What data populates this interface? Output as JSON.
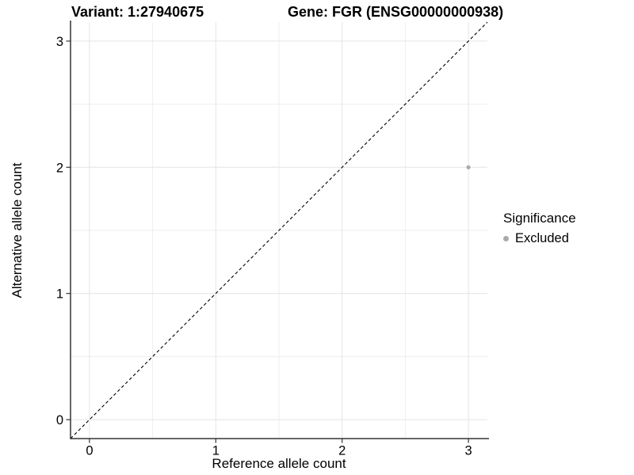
{
  "figure": {
    "title_variant": "Variant: 1:27940675",
    "title_gene": "Gene: FGR (ENSG00000000938)"
  },
  "chart_data": {
    "type": "scatter",
    "title": "Variant: 1:27940675    Gene: FGR (ENSG00000000938)",
    "xlabel": "Reference allele count",
    "ylabel": "Alternative allele count",
    "xlim": [
      -0.15,
      3.15
    ],
    "ylim": [
      -0.15,
      3.15
    ],
    "x_ticks": [
      0,
      1,
      2,
      3
    ],
    "y_ticks": [
      0,
      1,
      2,
      3
    ],
    "x_tick_labels": [
      "0",
      "1",
      "2",
      "3"
    ],
    "y_tick_labels": [
      "0",
      "1",
      "2",
      "3"
    ],
    "x_minor_gridlines": [
      0.5,
      1.5,
      2.5
    ],
    "y_minor_gridlines": [
      0.5,
      1.5,
      2.5
    ],
    "grid": "major and minor, light gray on white",
    "identity_line": {
      "style": "dashed",
      "from": [
        -0.15,
        -0.15
      ],
      "to": [
        3.15,
        3.15
      ],
      "color": "#000000"
    },
    "series": [
      {
        "name": "Excluded",
        "color": "#aaaaaa",
        "points": [
          {
            "x": 3,
            "y": 2
          }
        ]
      }
    ],
    "legend": {
      "position": "right",
      "title": "Significance",
      "entries": [
        {
          "label": "Excluded",
          "color": "#aaaaaa"
        }
      ]
    },
    "colors": {
      "grid_major": "#e4e4e4",
      "grid_minor": "#eeeeee",
      "axis_line": "#333333",
      "tick": "#333333",
      "text": "#000000",
      "background": "#ffffff"
    }
  }
}
